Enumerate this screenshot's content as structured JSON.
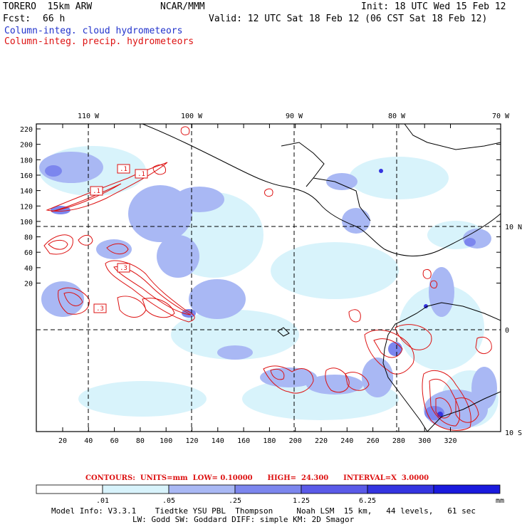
{
  "header": {
    "model": "TORERO  15km ARW",
    "center": "NCAR/MMM",
    "init": "Init: 18 UTC Wed 15 Feb 12",
    "fcst_label": "Fcst:",
    "fcst_value": "66 h",
    "valid": "Valid: 12 UTC Sat 18 Feb 12 (06 CST Sat 18 Feb 12)",
    "field1": "Column-integ. cloud hydrometeors",
    "field2": "Column-integ. precip. hydrometeors",
    "colors": {
      "field1": "#2233cc",
      "field2": "#dd1111"
    }
  },
  "map": {
    "top_labels": [
      "110 W",
      "100 W",
      "90 W",
      "80 W",
      "70 W"
    ],
    "right_labels": [
      "10 N",
      "0",
      "10 S"
    ],
    "y_ticks": [
      "220",
      "200",
      "180",
      "160",
      "140",
      "120",
      "100",
      "80",
      "60",
      "40",
      "20"
    ],
    "x_ticks": [
      "20",
      "40",
      "60",
      "80",
      "100",
      "120",
      "140",
      "160",
      "180",
      "200",
      "220",
      "240",
      "260",
      "280",
      "300",
      "320"
    ],
    "contour_labels": [
      ".1",
      ".1",
      ".1",
      ".3",
      ".3"
    ]
  },
  "contours_info": "CONTOURS:  UNITS=mm  LOW= 0.10000      HIGH=  24.300      INTERVAL=X  3.0000",
  "colorbar": {
    "labels": [
      ".01",
      ".05",
      ".25",
      "1.25",
      "6.25"
    ],
    "unit": "mm",
    "colors": [
      "#ffffff",
      "#d8f3fb",
      "#a9b8f4",
      "#7c86ee",
      "#5a5ae8",
      "#3434e0",
      "#1a1add"
    ]
  },
  "footer": {
    "line1": "Model Info: V3.3.1    Tiedtke YSU PBL  Thompson     Noah LSM  15 km,   44 levels,   61 sec",
    "line2": "LW: Godd SW: Goddard DIFF: simple KM: 2D Smagor"
  }
}
